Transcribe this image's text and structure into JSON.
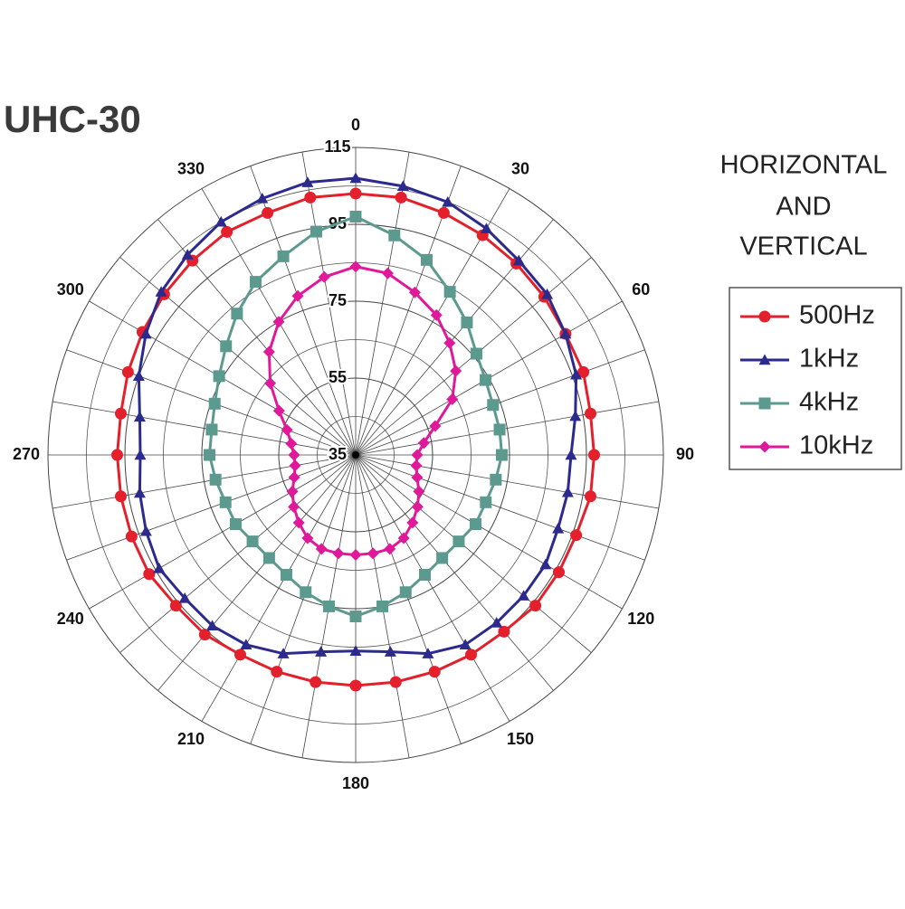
{
  "chart_data": {
    "type": "polar",
    "title": "UHC-30",
    "annotation": [
      "HORIZONTAL",
      "AND",
      "VERTICAL"
    ],
    "x": [
      0,
      10,
      20,
      30,
      40,
      50,
      60,
      70,
      80,
      90,
      100,
      110,
      120,
      130,
      140,
      150,
      160,
      170,
      180,
      190,
      200,
      210,
      220,
      230,
      240,
      250,
      260,
      270,
      280,
      290,
      300,
      310,
      320,
      330,
      340,
      350
    ],
    "xticks": [
      0,
      30,
      60,
      90,
      120,
      150,
      180,
      210,
      240,
      270,
      300,
      330
    ],
    "ylim": [
      35,
      115
    ],
    "yticks": [
      35,
      55,
      75,
      95,
      115
    ],
    "grid": true,
    "legend": "right",
    "series": [
      {
        "name": "500Hz",
        "color": "#e3202b",
        "marker": "circle",
        "values": [
          103,
          103,
          102,
          101,
          100,
          99,
          98,
          98,
          97,
          97,
          97,
          96,
          96,
          96,
          95,
          95,
          95,
          95,
          95,
          95,
          95,
          95,
          96,
          96,
          97,
          97,
          97,
          97,
          97,
          98,
          99,
          100,
          101,
          102,
          102,
          103
        ]
      },
      {
        "name": "1kHz",
        "color": "#2c2a8c",
        "marker": "triangle",
        "values": [
          107,
          106,
          105,
          103,
          101,
          100,
          98,
          96,
          93,
          91,
          91,
          91,
          92,
          92,
          92,
          92,
          90,
          87,
          86,
          87,
          90,
          92,
          93,
          93,
          94,
          93,
          92,
          91,
          92,
          95,
          98,
          101,
          103,
          105,
          106,
          107
        ]
      },
      {
        "name": "4kHz",
        "color": "#5c9a90",
        "marker": "square",
        "values": [
          97,
          93,
          89,
          84,
          80,
          76,
          74,
          73,
          73,
          73,
          72,
          71,
          71,
          70,
          70,
          71,
          73,
          75,
          77,
          75,
          73,
          71,
          70,
          70,
          71,
          71,
          72,
          73,
          73,
          74,
          76,
          79,
          83,
          87,
          90,
          94
        ]
      },
      {
        "name": "10kHz",
        "color": "#e0189a",
        "marker": "diamond",
        "values": [
          84,
          83,
          80,
          77,
          73,
          69,
          64,
          57,
          53,
          51,
          51,
          52,
          54,
          56,
          58,
          60,
          61,
          61,
          61,
          61,
          61,
          60,
          58,
          56,
          54,
          52,
          51,
          51,
          52,
          54,
          58,
          64,
          70,
          75,
          79,
          82
        ]
      }
    ]
  }
}
